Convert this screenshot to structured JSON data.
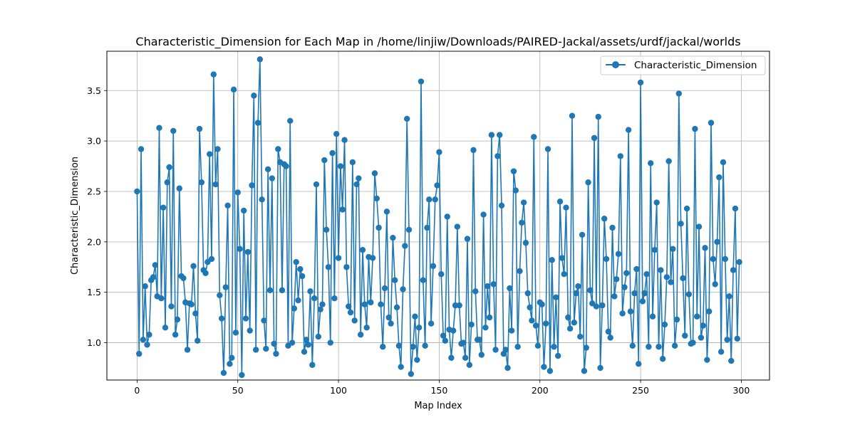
{
  "chart_data": {
    "type": "line",
    "title": "Characteristic_Dimension for Each Map in /home/linjiw/Downloads/PAIRED-Jackal/assets/urdf/jackal/worlds",
    "xlabel": "Map Index",
    "ylabel": "Characteristic_Dimension",
    "xlim": [
      -15,
      314
    ],
    "ylim": [
      0.63,
      3.89
    ],
    "xticks": [
      0,
      50,
      100,
      150,
      200,
      250,
      300
    ],
    "yticks": [
      1.0,
      1.5,
      2.0,
      2.5,
      3.0,
      3.5
    ],
    "xtick_labels": [
      "0",
      "50",
      "100",
      "150",
      "200",
      "250",
      "300"
    ],
    "ytick_labels": [
      "1.0",
      "1.5",
      "2.0",
      "2.5",
      "3.0",
      "3.5"
    ],
    "grid": true,
    "legend_position": "top-right",
    "marker": "circle",
    "color": "#1f77b4",
    "series": [
      {
        "name": "Characteristic_Dimension",
        "x_start": 0,
        "x_step": 1,
        "values": [
          2.5,
          0.89,
          2.92,
          1.03,
          1.56,
          0.98,
          1.08,
          1.62,
          1.65,
          1.77,
          1.46,
          3.13,
          1.44,
          2.34,
          1.15,
          2.59,
          2.74,
          1.36,
          3.1,
          1.08,
          1.23,
          2.53,
          1.66,
          1.64,
          1.4,
          0.93,
          1.39,
          1.38,
          1.76,
          1.29,
          1.02,
          3.12,
          2.59,
          1.72,
          1.69,
          1.8,
          2.87,
          1.83,
          3.66,
          2.57,
          2.92,
          1.47,
          1.24,
          0.7,
          1.55,
          2.36,
          0.79,
          0.85,
          3.51,
          1.1,
          2.49,
          1.93,
          0.68,
          2.31,
          1.24,
          1.9,
          1.12,
          2.56,
          3.45,
          0.93,
          3.18,
          3.81,
          2.42,
          1.22,
          0.94,
          2.72,
          1.52,
          2.63,
          0.99,
          0.89,
          2.92,
          2.79,
          1.52,
          2.77,
          2.75,
          0.97,
          3.2,
          1.0,
          1.34,
          1.8,
          1.42,
          1.73,
          1.66,
          0.91,
          1.03,
          0.98,
          1.51,
          0.78,
          1.44,
          2.57,
          1.06,
          1.33,
          1.38,
          2.81,
          2.12,
          1.75,
          1.0,
          2.88,
          1.44,
          3.07,
          1.84,
          2.75,
          2.32,
          3.01,
          1.75,
          1.36,
          1.3,
          2.79,
          1.22,
          2.57,
          2.63,
          1.08,
          1.92,
          1.38,
          1.15,
          1.85,
          1.4,
          1.84,
          2.68,
          2.43,
          2.14,
          1.38,
          0.96,
          1.54,
          2.3,
          1.25,
          1.19,
          2.04,
          1.62,
          1.35,
          0.97,
          0.76,
          1.53,
          1.96,
          3.22,
          2.12,
          0.69,
          0.96,
          1.26,
          0.83,
          1.15,
          3.59,
          1.62,
          0.97,
          2.14,
          2.42,
          1.19,
          1.76,
          2.42,
          2.56,
          2.89,
          1.68,
          1.07,
          1.02,
          2.25,
          1.13,
          0.85,
          1.12,
          1.37,
          2.15,
          1.37,
          0.99,
          1.0,
          0.85,
          2.03,
          0.78,
          1.18,
          2.91,
          1.51,
          1.03,
          1.03,
          0.88,
          2.27,
          1.15,
          1.56,
          1.25,
          3.06,
          1.58,
          0.93,
          2.85,
          3.06,
          2.36,
          0.89,
          0.93,
          0.75,
          1.54,
          1.12,
          2.7,
          2.51,
          0.96,
          1.71,
          2.19,
          2.39,
          1.99,
          1.49,
          1.35,
          1.22,
          3.04,
          1.17,
          0.97,
          1.4,
          1.38,
          0.76,
          1.19,
          2.92,
          0.72,
          1.82,
          0.96,
          1.45,
          0.87,
          2.4,
          1.84,
          1.68,
          2.34,
          1.25,
          1.14,
          3.25,
          1.2,
          1.49,
          1.56,
          1.06,
          2.07,
          0.72,
          0.95,
          2.59,
          1.52,
          1.39,
          3.03,
          1.36,
          3.24,
          0.75,
          1.37,
          2.23,
          1.83,
          1.11,
          1.05,
          2.14,
          1.46,
          1.63,
          1.88,
          2.85,
          1.29,
          1.55,
          1.69,
          3.11,
          1.31,
          0.97,
          1.49,
          1.73,
          0.79,
          3.58,
          1.41,
          1.49,
          1.68,
          0.96,
          2.78,
          1.26,
          1.92,
          2.39,
          0.96,
          1.72,
          0.84,
          1.18,
          1.65,
          2.8,
          1.6,
          1.93,
          0.97,
          1.23,
          3.47,
          2.18,
          1.64,
          1.07,
          2.33,
          1.48,
          0.99,
          1.0,
          3.12,
          1.26,
          2.15,
          1.05,
          1.17,
          1.94,
          0.83,
          1.31,
          3.18,
          1.83,
          1.58,
          2.0,
          2.64,
          0.91,
          2.79,
          1.83,
          1.03,
          1.46,
          0.82,
          1.72,
          2.33,
          1.04,
          1.8
        ]
      }
    ]
  }
}
